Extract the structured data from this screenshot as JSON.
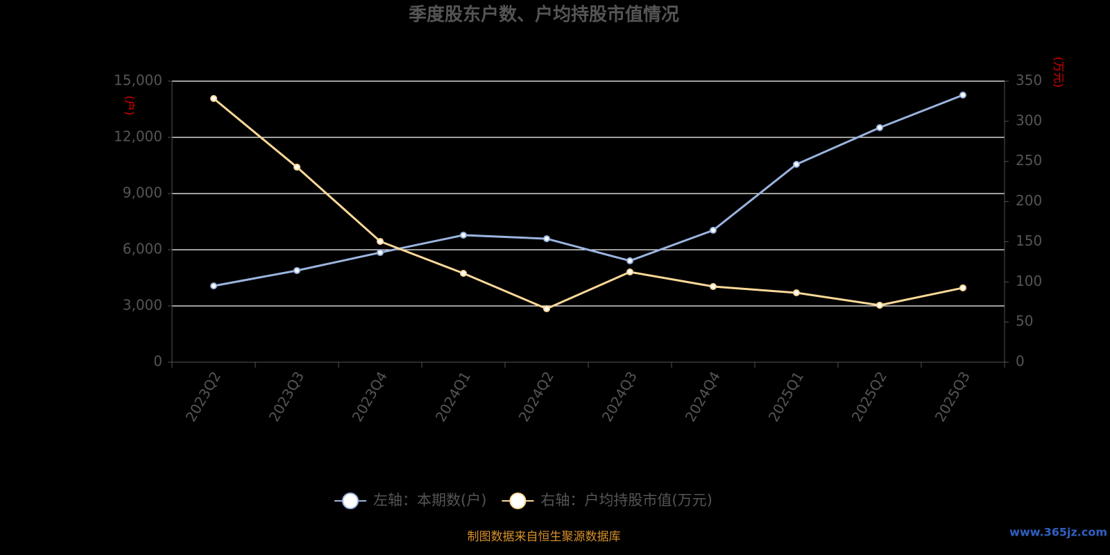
{
  "chart_data": {
    "type": "line",
    "title": "季度股东户数、户均持股市值情况",
    "y_label": "(户)",
    "y2_label": "(万元)",
    "categories": [
      "2023Q2",
      "2023Q3",
      "2023Q4",
      "2024Q1",
      "2024Q2",
      "2024Q3",
      "2024Q4",
      "2025Q1",
      "2025Q2",
      "2025Q3"
    ],
    "series": [
      {
        "name": "左轴：本期数(户)",
        "color": "#9bb5e0",
        "values": [
          4070,
          4890,
          5850,
          6780,
          6590,
          5410,
          7040,
          10560,
          12520,
          14260
        ]
      },
      {
        "name": "右轴：户均持股市值(万元)",
        "color": "#fcd999",
        "axis": "y2",
        "values": [
          328.4,
          242.9,
          150.4,
          110.6,
          66.5,
          112.3,
          94.2,
          86.4,
          70.9,
          92.5
        ]
      }
    ],
    "ylim": [
      0,
      15000
    ],
    "yticks": [
      0,
      {
        "value": 3000,
        "label": "3,000"
      },
      {
        "value": 6000,
        "label": "6,000"
      },
      {
        "value": 9000,
        "label": "9,000"
      },
      {
        "value": 12000,
        "label": "12,000"
      },
      {
        "value": 15000,
        "label": "15,000"
      }
    ],
    "y2lim": [
      0,
      350
    ],
    "y2ticks": [
      0,
      50,
      100,
      150,
      200,
      250,
      300,
      350
    ],
    "grid": true,
    "legend": "bottom",
    "source": "制图数据来自恒生聚源数据库",
    "watermark": "www.365jz.com"
  }
}
